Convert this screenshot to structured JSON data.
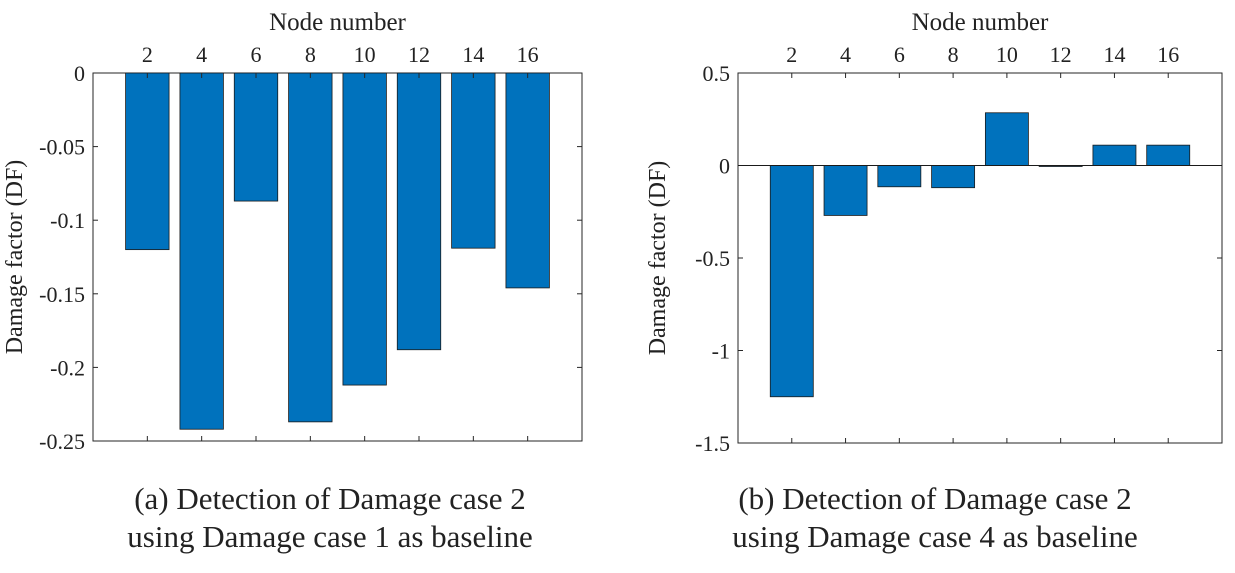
{
  "colors": {
    "bar": "#0072BD",
    "bar_edge": "#1a1a1a",
    "axis": "#262626",
    "zero_line": "#1a1a1a"
  },
  "chart_data": [
    {
      "type": "bar",
      "title": "",
      "xlabel": "Node number",
      "ylabel": "Damage factor (DF)",
      "categories": [
        "2",
        "4",
        "6",
        "8",
        "10",
        "12",
        "14",
        "16"
      ],
      "values": [
        -0.12,
        -0.242,
        -0.087,
        -0.237,
        -0.212,
        -0.188,
        -0.119,
        -0.146
      ],
      "ylim": [
        -0.25,
        0
      ],
      "yticks": [
        0,
        -0.05,
        -0.1,
        -0.15,
        -0.2,
        -0.25
      ],
      "ytick_labels": [
        "0",
        "-0.05",
        "-0.1",
        "-0.15",
        "-0.2",
        "-0.25"
      ],
      "xaxis_location": "top",
      "caption_line1": "(a) Detection of Damage case 2",
      "caption_line2": "using Damage case 1 as baseline"
    },
    {
      "type": "bar",
      "title": "",
      "xlabel": "Node number",
      "ylabel": "Damage factor (DF)",
      "categories": [
        "2",
        "4",
        "6",
        "8",
        "10",
        "12",
        "14",
        "16"
      ],
      "values": [
        -1.25,
        -0.27,
        -0.115,
        -0.12,
        0.285,
        -0.005,
        0.11,
        0.11
      ],
      "ylim": [
        -1.5,
        0.5
      ],
      "yticks": [
        0.5,
        0,
        -0.5,
        -1,
        -1.5
      ],
      "ytick_labels": [
        "0.5",
        "0",
        "-0.5",
        "-1",
        "-1.5"
      ],
      "xaxis_location": "top",
      "caption_line1": "(b) Detection of Damage case 2",
      "caption_line2": "using Damage case 4 as baseline"
    }
  ]
}
